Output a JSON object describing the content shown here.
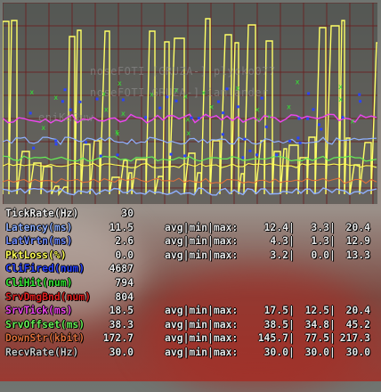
{
  "colors": {
    "ticks": "#ffff66",
    "latency": "#8fb0ff",
    "latvrtn": "#6f8bff",
    "pktloss": "#ffff55",
    "clifired": "#2a44ff",
    "clihit": "#33e633",
    "srvdmgbnd": "#e02020",
    "srvtick": "#ee44ee",
    "srvoffset": "#66ee55",
    "downstr": "#e06f3a",
    "recvrate": "#c8c8c8",
    "value_white": "#e8e8e8",
    "grid": "#6a2020"
  },
  "ghost_text": {
    "line1": "noseFOTI [GRUZA-] plyoko077",
    "line2": "noseFOTI GRUZA-] iamlander",
    "line3": "eniKaSuw"
  },
  "stats": [
    {
      "key": "tickrate",
      "label": "TickRate(Hz)",
      "value": "30",
      "color": "#f0f0f0"
    },
    {
      "key": "latency",
      "label": "Latency(ms)",
      "value": "11.5",
      "agg": "avg|min|max:",
      "avg": "12.4",
      "min": "3.3",
      "max": "20.4",
      "color": "#8fb0ff"
    },
    {
      "key": "latvrtn",
      "label": "LatVrtn(ms)",
      "value": "2.6",
      "agg": "avg|min|max:",
      "avg": "4.3",
      "min": "1.3",
      "max": "12.9",
      "color": "#6f8bff"
    },
    {
      "key": "pktloss",
      "label": "PktLoss(%)",
      "value": "0.0",
      "agg": "avg|min|max:",
      "avg": "3.2",
      "min": "0.0",
      "max": "13.3",
      "color": "#ffff55"
    },
    {
      "key": "clifired",
      "label": "CliFired(num)",
      "value": "4687",
      "color": "#2a44ff"
    },
    {
      "key": "clihit",
      "label": "CliHit(num)",
      "value": "794",
      "color": "#33e633"
    },
    {
      "key": "srvdmgbnd",
      "label": "SrvDmgBnd(num)",
      "value": "804",
      "color": "#e02020"
    },
    {
      "key": "srvtick",
      "label": "SrvTick(ms)",
      "value": "18.5",
      "agg": "avg|min|max:",
      "avg": "17.5",
      "min": "12.5",
      "max": "20.4",
      "color": "#ee44ee"
    },
    {
      "key": "srvoffset",
      "label": "SrvOffset(ms)",
      "value": "38.3",
      "agg": "avg|min|max:",
      "avg": "38.5",
      "min": "34.8",
      "max": "45.2",
      "color": "#66ee55"
    },
    {
      "key": "downstr",
      "label": "DownStr(kbit)",
      "value": "172.7",
      "agg": "avg|min|max:",
      "avg": "145.7",
      "min": "77.5",
      "max": "217.3",
      "color": "#e06f3a"
    },
    {
      "key": "recvrate",
      "label": "RecvRate(Hz)",
      "value": "30.0",
      "agg": "avg|min|max:",
      "avg": "30.0",
      "min": "30.0",
      "max": "30.0",
      "color": "#c8c8c8"
    }
  ],
  "sep": "|"
}
